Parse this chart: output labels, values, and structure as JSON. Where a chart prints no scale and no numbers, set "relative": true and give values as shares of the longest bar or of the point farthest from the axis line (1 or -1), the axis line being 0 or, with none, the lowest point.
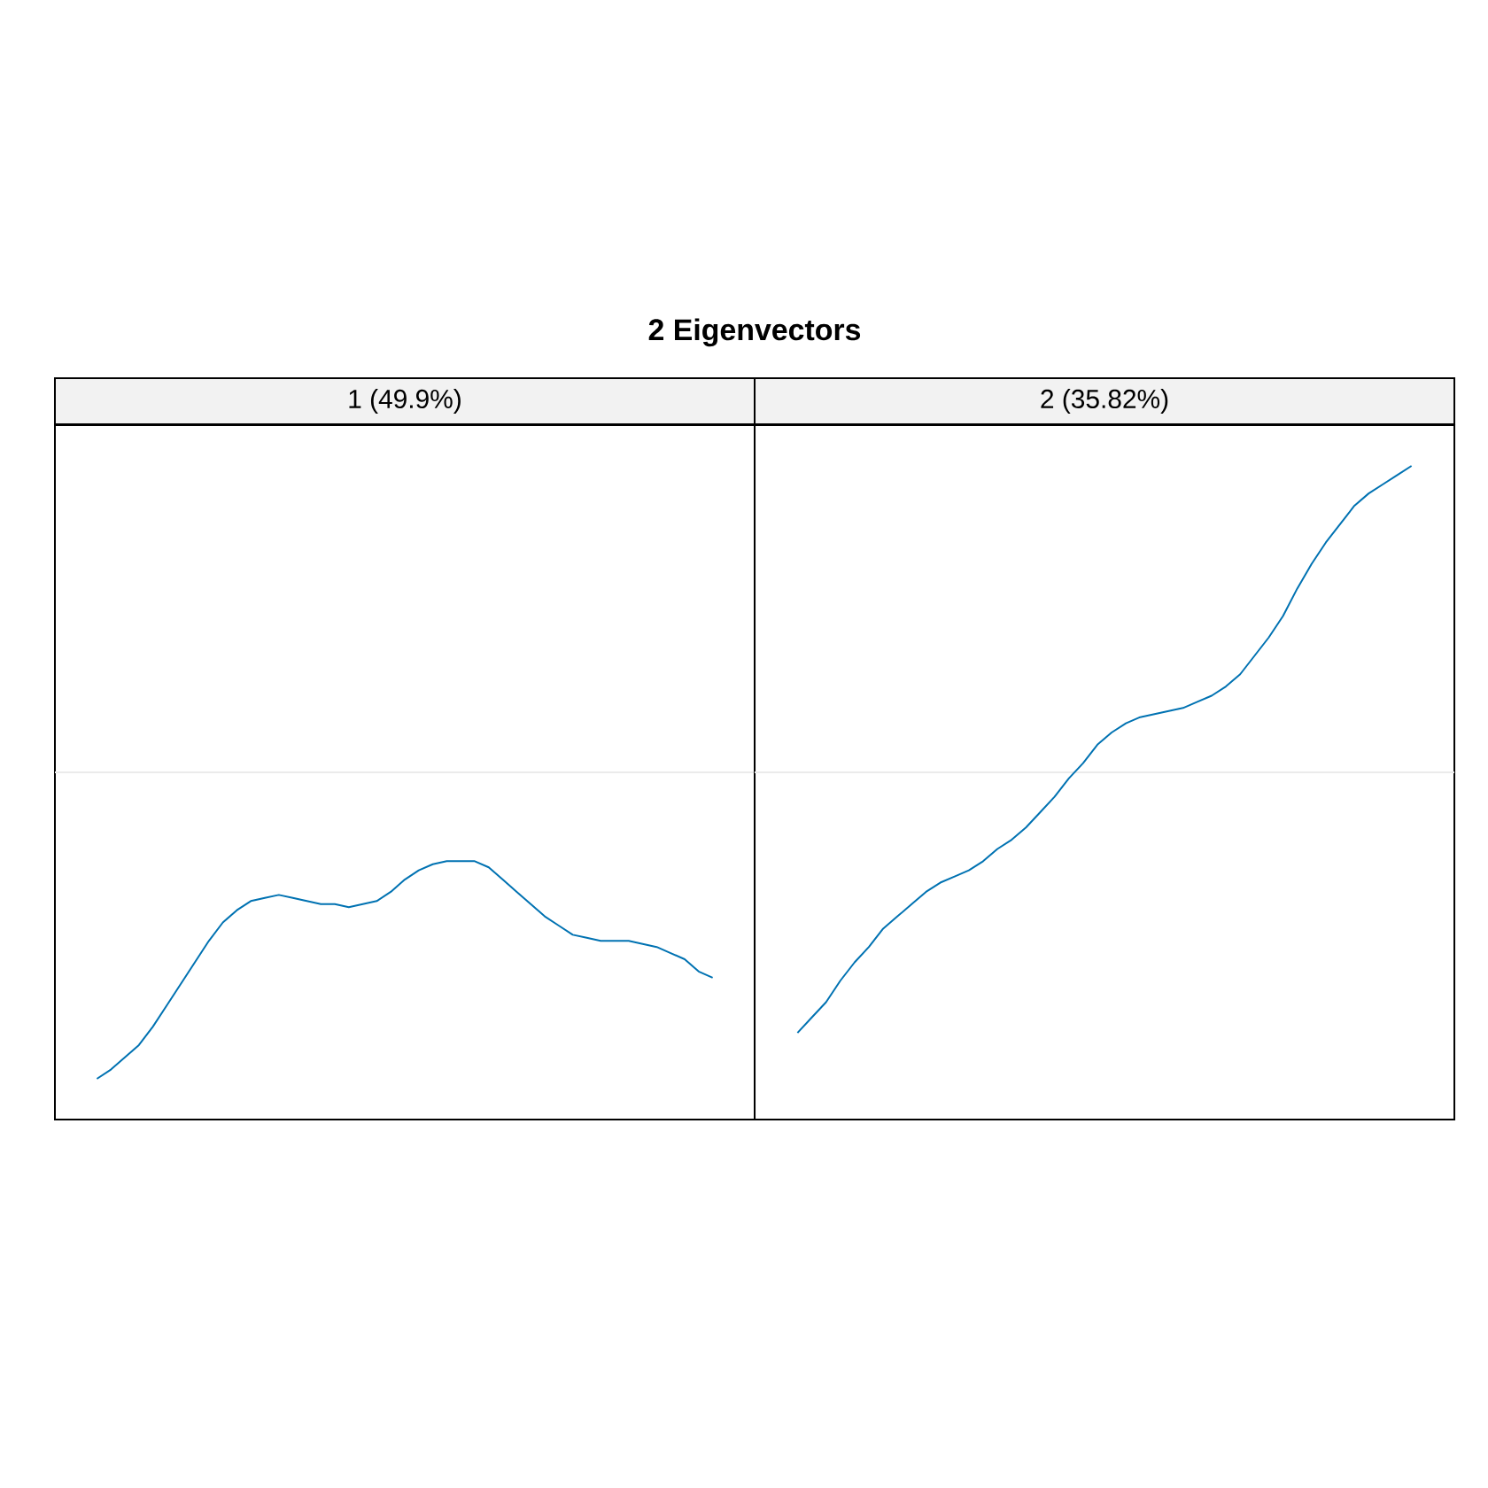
{
  "chart_data": [
    {
      "type": "line",
      "relative": true,
      "title": "1 (49.9%)",
      "annotations": [
        "2 Eigenvectors"
      ],
      "color": "#0072b2",
      "categories": [
        null,
        null,
        null,
        null,
        null,
        null,
        null,
        null,
        null,
        null,
        null,
        null,
        null,
        null,
        null,
        null,
        null,
        null,
        null,
        null,
        null,
        null,
        null,
        null,
        null,
        null,
        null,
        null,
        null,
        null,
        null,
        null,
        null,
        null,
        null,
        null,
        null,
        null,
        null,
        null,
        null,
        null,
        null,
        null,
        null
      ],
      "values": [
        -1.0,
        -0.97,
        -0.93,
        -0.89,
        -0.83,
        -0.76,
        -0.69,
        -0.62,
        -0.55,
        -0.49,
        -0.45,
        -0.42,
        -0.41,
        -0.4,
        -0.41,
        -0.42,
        -0.43,
        -0.43,
        -0.44,
        -0.43,
        -0.42,
        -0.39,
        -0.35,
        -0.32,
        -0.3,
        -0.29,
        -0.29,
        -0.29,
        -0.31,
        -0.35,
        -0.39,
        -0.43,
        -0.47,
        -0.5,
        -0.53,
        -0.54,
        -0.55,
        -0.55,
        -0.55,
        -0.56,
        -0.57,
        -0.59,
        -0.61,
        -0.65,
        -0.67
      ],
      "ref_lines": [
        {
          "axis": "y",
          "value": 0,
          "color": "#ebebeb"
        }
      ]
    },
    {
      "type": "line",
      "relative": true,
      "title": "2 (35.82%)",
      "color": "#0072b2",
      "categories": [
        null,
        null,
        null,
        null,
        null,
        null,
        null,
        null,
        null,
        null,
        null,
        null,
        null,
        null,
        null,
        null,
        null,
        null,
        null,
        null,
        null,
        null,
        null,
        null,
        null,
        null,
        null,
        null,
        null,
        null,
        null,
        null,
        null,
        null,
        null,
        null,
        null,
        null,
        null,
        null,
        null,
        null,
        null,
        null
      ],
      "values": [
        -0.85,
        -0.8,
        -0.75,
        -0.68,
        -0.62,
        -0.57,
        -0.51,
        -0.47,
        -0.43,
        -0.39,
        -0.36,
        -0.34,
        -0.32,
        -0.29,
        -0.25,
        -0.22,
        -0.18,
        -0.13,
        -0.08,
        -0.02,
        0.03,
        0.09,
        0.13,
        0.16,
        0.18,
        0.19,
        0.2,
        0.21,
        0.23,
        0.25,
        0.28,
        0.32,
        0.38,
        0.44,
        0.51,
        0.6,
        0.68,
        0.75,
        0.81,
        0.87,
        0.91,
        0.94,
        0.97,
        1.0
      ],
      "ref_lines": [
        {
          "axis": "y",
          "value": 0,
          "color": "#ebebeb"
        }
      ]
    }
  ]
}
